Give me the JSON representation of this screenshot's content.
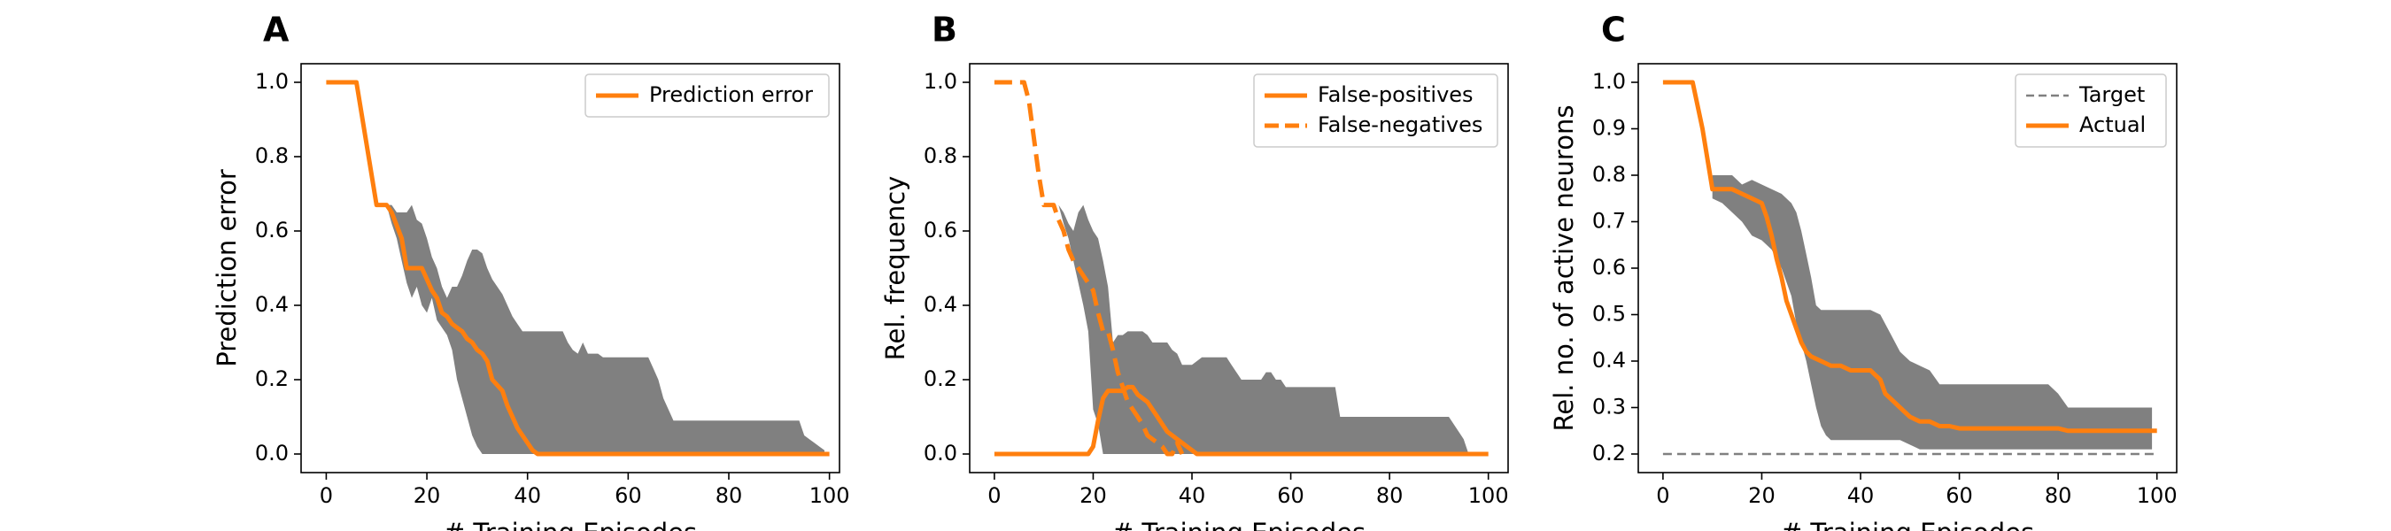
{
  "chart_data": [
    {
      "panel": "A",
      "type": "line",
      "xlabel": "# Training Episodes",
      "ylabel": "Prediction error",
      "xlim": [
        -5,
        102
      ],
      "ylim": [
        -0.05,
        1.05
      ],
      "xticks": [
        0,
        20,
        40,
        60,
        80,
        100
      ],
      "yticks": [
        0.0,
        0.2,
        0.4,
        0.6,
        0.8,
        1.0
      ],
      "ytick_labels": [
        "0.0",
        "0.2",
        "0.4",
        "0.6",
        "0.8",
        "1.0"
      ],
      "legend": {
        "position": "top-right",
        "entries": [
          {
            "label": "Prediction error",
            "style": "solid",
            "color": "#ff7f0e"
          }
        ]
      },
      "band": {
        "color": "#808080",
        "x": [
          12,
          13,
          14,
          15,
          16,
          17,
          18,
          19,
          20,
          21,
          22,
          23,
          24,
          25,
          26,
          27,
          28,
          29,
          30,
          31,
          32,
          33,
          34,
          35,
          36,
          37,
          38,
          39,
          40,
          41,
          42,
          43,
          44,
          45,
          46,
          47,
          48,
          49,
          50,
          51,
          52,
          53,
          54,
          55,
          56,
          57,
          58,
          59,
          60,
          61,
          62,
          63,
          64,
          65,
          66,
          67,
          68,
          69,
          70,
          72,
          75,
          80,
          85,
          90,
          94,
          95,
          96,
          97,
          98,
          99
        ],
        "upper": [
          0.67,
          0.67,
          0.65,
          0.65,
          0.65,
          0.67,
          0.63,
          0.62,
          0.58,
          0.53,
          0.5,
          0.45,
          0.42,
          0.45,
          0.45,
          0.48,
          0.52,
          0.55,
          0.55,
          0.54,
          0.5,
          0.47,
          0.45,
          0.43,
          0.4,
          0.37,
          0.35,
          0.33,
          0.33,
          0.33,
          0.33,
          0.33,
          0.33,
          0.33,
          0.33,
          0.33,
          0.3,
          0.28,
          0.27,
          0.3,
          0.27,
          0.27,
          0.27,
          0.26,
          0.26,
          0.26,
          0.26,
          0.26,
          0.26,
          0.26,
          0.26,
          0.26,
          0.26,
          0.23,
          0.2,
          0.15,
          0.12,
          0.09,
          0.09,
          0.09,
          0.09,
          0.09,
          0.09,
          0.09,
          0.09,
          0.05,
          0.04,
          0.03,
          0.02,
          0.01
        ],
        "lower": [
          0.67,
          0.62,
          0.58,
          0.52,
          0.46,
          0.42,
          0.45,
          0.4,
          0.38,
          0.42,
          0.36,
          0.34,
          0.32,
          0.28,
          0.2,
          0.15,
          0.1,
          0.05,
          0.02,
          0.0,
          0.0,
          0.0,
          0.0,
          0.0,
          0.0,
          0.0,
          0.0,
          0.0,
          0.0,
          0.0,
          0.0,
          0.0,
          0.0,
          0.0,
          0.0,
          0.0,
          0.0,
          0.0,
          0.0,
          0.0,
          0.0,
          0.0,
          0.0,
          0.0,
          0.0,
          0.0,
          0.0,
          0.0,
          0.0,
          0.0,
          0.0,
          0.0,
          0.0,
          0.0,
          0.0,
          0.0,
          0.0,
          0.0,
          0.0,
          0.0,
          0.0,
          0.0,
          0.0,
          0.0,
          0.0,
          0.0,
          0.0,
          0.0,
          0.0,
          0.0
        ]
      },
      "series": [
        {
          "name": "Prediction error",
          "style": "solid",
          "color": "#ff7f0e",
          "x": [
            0,
            6,
            10,
            12,
            13,
            15,
            16,
            17,
            19,
            20,
            21,
            22,
            23,
            24,
            25,
            26,
            27,
            28,
            29,
            30,
            31,
            32,
            33,
            35,
            36,
            37,
            38,
            39,
            40,
            41,
            42,
            43,
            100
          ],
          "y": [
            1.0,
            1.0,
            0.67,
            0.67,
            0.65,
            0.58,
            0.5,
            0.5,
            0.5,
            0.47,
            0.44,
            0.42,
            0.38,
            0.37,
            0.35,
            0.34,
            0.33,
            0.31,
            0.3,
            0.28,
            0.27,
            0.25,
            0.2,
            0.17,
            0.13,
            0.1,
            0.07,
            0.05,
            0.03,
            0.01,
            0.0,
            0.0,
            0.0
          ]
        }
      ]
    },
    {
      "panel": "B",
      "type": "line",
      "xlabel": "# Training Episodes",
      "ylabel": "Rel. frequency",
      "xlim": [
        -5,
        104
      ],
      "ylim": [
        -0.05,
        1.05
      ],
      "xticks": [
        0,
        20,
        40,
        60,
        80,
        100
      ],
      "yticks": [
        0.0,
        0.2,
        0.4,
        0.6,
        0.8,
        1.0
      ],
      "ytick_labels": [
        "0.0",
        "0.2",
        "0.4",
        "0.6",
        "0.8",
        "1.0"
      ],
      "legend": {
        "position": "top-right",
        "entries": [
          {
            "label": "False-positives",
            "style": "solid",
            "color": "#ff7f0e"
          },
          {
            "label": "False-negatives",
            "style": "dashed",
            "color": "#ff7f0e"
          }
        ]
      },
      "band": {
        "color": "#808080",
        "x": [
          13,
          14,
          15,
          16,
          17,
          18,
          19,
          20,
          21,
          22,
          23,
          24,
          25,
          26,
          27,
          28,
          29,
          30,
          31,
          32,
          33,
          34,
          35,
          36,
          37,
          38,
          39,
          40,
          41,
          42,
          43,
          44,
          45,
          46,
          47,
          48,
          49,
          50,
          51,
          52,
          53,
          54,
          55,
          56,
          57,
          58,
          59,
          60,
          62,
          65,
          68,
          69,
          70,
          75,
          80,
          85,
          90,
          92,
          94,
          95,
          96
        ],
        "upper": [
          0.67,
          0.65,
          0.62,
          0.6,
          0.65,
          0.67,
          0.63,
          0.6,
          0.58,
          0.52,
          0.45,
          0.3,
          0.32,
          0.32,
          0.33,
          0.33,
          0.33,
          0.33,
          0.32,
          0.3,
          0.3,
          0.3,
          0.3,
          0.28,
          0.27,
          0.24,
          0.24,
          0.24,
          0.25,
          0.26,
          0.26,
          0.26,
          0.26,
          0.26,
          0.26,
          0.24,
          0.22,
          0.2,
          0.2,
          0.2,
          0.2,
          0.2,
          0.22,
          0.22,
          0.2,
          0.2,
          0.18,
          0.18,
          0.18,
          0.18,
          0.18,
          0.18,
          0.1,
          0.1,
          0.1,
          0.1,
          0.1,
          0.1,
          0.06,
          0.04,
          0.0
        ],
        "lower": [
          0.67,
          0.62,
          0.58,
          0.52,
          0.46,
          0.4,
          0.33,
          0.12,
          0.08,
          0.0,
          0.0,
          0.0,
          0.0,
          0.0,
          0.0,
          0.0,
          0.0,
          0.0,
          0.0,
          0.0,
          0.0,
          0.0,
          0.0,
          0.0,
          0.0,
          0.0,
          0.0,
          0.0,
          0.0,
          0.0,
          0.0,
          0.0,
          0.0,
          0.0,
          0.0,
          0.0,
          0.0,
          0.0,
          0.0,
          0.0,
          0.0,
          0.0,
          0.0,
          0.0,
          0.0,
          0.0,
          0.0,
          0.0,
          0.0,
          0.0,
          0.0,
          0.0,
          0.0,
          0.0,
          0.0,
          0.0,
          0.0,
          0.0,
          0.0,
          0.0,
          0.0
        ]
      },
      "series": [
        {
          "name": "False-positives",
          "style": "solid",
          "color": "#ff7f0e",
          "x": [
            0,
            19,
            20,
            21,
            22,
            23,
            24,
            25,
            26,
            27,
            28,
            29,
            30,
            31,
            32,
            33,
            34,
            35,
            36,
            37,
            38,
            39,
            40,
            41,
            42,
            100
          ],
          "y": [
            0.0,
            0.0,
            0.02,
            0.09,
            0.15,
            0.17,
            0.17,
            0.17,
            0.17,
            0.18,
            0.18,
            0.16,
            0.15,
            0.14,
            0.12,
            0.1,
            0.08,
            0.06,
            0.05,
            0.04,
            0.03,
            0.02,
            0.01,
            0.0,
            0.0,
            0.0
          ]
        },
        {
          "name": "False-negatives",
          "style": "dashed",
          "color": "#ff7f0e",
          "x": [
            0,
            6,
            7,
            8,
            9,
            10,
            11,
            12,
            13,
            14,
            15,
            16,
            17,
            18,
            19,
            20,
            21,
            22,
            23,
            24,
            25,
            26,
            27,
            28,
            29,
            30,
            31,
            32,
            33,
            34,
            35,
            36,
            37,
            38
          ],
          "y": [
            1.0,
            1.0,
            0.95,
            0.85,
            0.75,
            0.67,
            0.67,
            0.67,
            0.63,
            0.6,
            0.55,
            0.52,
            0.5,
            0.48,
            0.46,
            0.44,
            0.38,
            0.33,
            0.33,
            0.28,
            0.22,
            0.18,
            0.14,
            0.12,
            0.1,
            0.08,
            0.05,
            0.04,
            0.03,
            0.02,
            0.0,
            0.0,
            0.03,
            0.0
          ]
        }
      ]
    },
    {
      "panel": "C",
      "type": "line",
      "xlabel": "# Training Episodes",
      "ylabel": "Rel. no. of active neurons",
      "xlim": [
        -5,
        104
      ],
      "ylim": [
        0.16,
        1.04
      ],
      "xticks": [
        0,
        20,
        40,
        60,
        80,
        100
      ],
      "yticks": [
        0.2,
        0.3,
        0.4,
        0.5,
        0.6,
        0.7,
        0.8,
        0.9,
        1.0
      ],
      "ytick_labels": [
        "0.2",
        "0.3",
        "0.4",
        "0.5",
        "0.6",
        "0.7",
        "0.8",
        "0.9",
        "1.0"
      ],
      "legend": {
        "position": "top-right",
        "entries": [
          {
            "label": "Target",
            "style": "dashed",
            "color": "#808080"
          },
          {
            "label": "Actual",
            "style": "solid",
            "color": "#ff7f0e"
          }
        ]
      },
      "band": {
        "color": "#808080",
        "x": [
          10,
          12,
          14,
          16,
          18,
          20,
          22,
          24,
          26,
          27,
          28,
          29,
          30,
          31,
          32,
          33,
          34,
          36,
          38,
          40,
          42,
          44,
          46,
          48,
          50,
          52,
          54,
          56,
          58,
          60,
          62,
          64,
          66,
          68,
          70,
          72,
          74,
          76,
          78,
          80,
          82,
          84,
          86,
          88,
          90,
          92,
          94,
          96,
          98,
          99
        ],
        "upper": [
          0.8,
          0.8,
          0.8,
          0.78,
          0.79,
          0.78,
          0.77,
          0.76,
          0.74,
          0.72,
          0.68,
          0.63,
          0.58,
          0.52,
          0.51,
          0.51,
          0.51,
          0.51,
          0.51,
          0.51,
          0.51,
          0.5,
          0.46,
          0.42,
          0.4,
          0.39,
          0.38,
          0.35,
          0.35,
          0.35,
          0.35,
          0.35,
          0.35,
          0.35,
          0.35,
          0.35,
          0.35,
          0.35,
          0.35,
          0.33,
          0.3,
          0.3,
          0.3,
          0.3,
          0.3,
          0.3,
          0.3,
          0.3,
          0.3,
          0.3
        ],
        "lower": [
          0.75,
          0.74,
          0.72,
          0.7,
          0.67,
          0.66,
          0.64,
          0.6,
          0.54,
          0.48,
          0.44,
          0.4,
          0.35,
          0.3,
          0.26,
          0.24,
          0.23,
          0.23,
          0.23,
          0.23,
          0.23,
          0.23,
          0.23,
          0.23,
          0.22,
          0.21,
          0.21,
          0.21,
          0.21,
          0.21,
          0.21,
          0.21,
          0.21,
          0.21,
          0.21,
          0.21,
          0.21,
          0.21,
          0.21,
          0.21,
          0.21,
          0.21,
          0.21,
          0.21,
          0.21,
          0.21,
          0.21,
          0.21,
          0.21,
          0.21
        ]
      },
      "series": [
        {
          "name": "Target",
          "style": "dashed",
          "color": "#808080",
          "x": [
            0,
            100
          ],
          "y": [
            0.2,
            0.2
          ]
        },
        {
          "name": "Actual",
          "style": "solid",
          "color": "#ff7f0e",
          "x": [
            0,
            6,
            8,
            10,
            12,
            14,
            16,
            18,
            20,
            21,
            22,
            23,
            24,
            25,
            26,
            27,
            28,
            29,
            30,
            32,
            34,
            36,
            38,
            40,
            41,
            42,
            43,
            44,
            45,
            46,
            48,
            50,
            52,
            54,
            56,
            58,
            60,
            70,
            80,
            82,
            84,
            90,
            100
          ],
          "y": [
            1.0,
            1.0,
            0.9,
            0.77,
            0.77,
            0.77,
            0.76,
            0.75,
            0.74,
            0.71,
            0.67,
            0.62,
            0.58,
            0.53,
            0.5,
            0.47,
            0.44,
            0.42,
            0.41,
            0.4,
            0.39,
            0.39,
            0.38,
            0.38,
            0.38,
            0.38,
            0.37,
            0.36,
            0.33,
            0.32,
            0.3,
            0.28,
            0.27,
            0.27,
            0.26,
            0.26,
            0.255,
            0.255,
            0.255,
            0.25,
            0.25,
            0.25,
            0.25
          ]
        }
      ]
    }
  ]
}
